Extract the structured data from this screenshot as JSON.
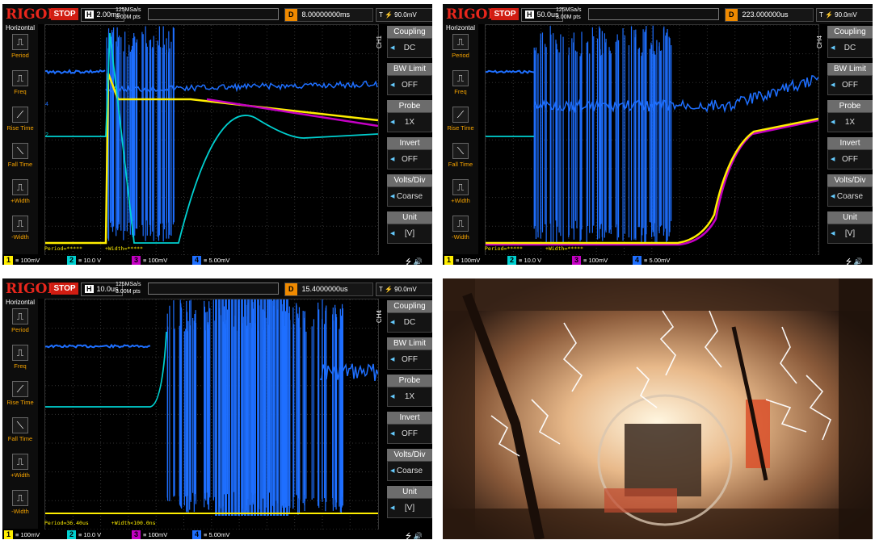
{
  "panels": [
    {
      "brand": "RIGOL",
      "run_state": "STOP",
      "timebase": "2.00ms",
      "sample_rate": "125MSa/s",
      "memory_depth": "3.00M pts",
      "delay": "8.00000000ms",
      "trigger_level": "90.0mV",
      "channel_label": "CH1",
      "measure_period": "Period=*****",
      "measure_width": "+Width=*****",
      "highlight_channel": "1"
    },
    {
      "brand": "RIGOL",
      "run_state": "STOP",
      "timebase": "50.0us",
      "sample_rate": "125MSa/s",
      "memory_depth": "3.00M pts",
      "delay": "223.000000us",
      "trigger_level": "90.0mV",
      "channel_label": "CH4",
      "measure_period": "Period=*****",
      "measure_width": "+Width=*****",
      "highlight_channel": "4"
    },
    {
      "brand": "RIGOL",
      "run_state": "STOP",
      "timebase": "10.0us",
      "sample_rate": "125MSa/s",
      "memory_depth": "3.00M pts",
      "delay": "15.4000000us",
      "trigger_level": "90.0mV",
      "channel_label": "CH4",
      "measure_period": "Period=36.40us",
      "measure_width": "+Width<100.0ns",
      "highlight_channel": "4"
    }
  ],
  "left_menu": {
    "title": "Horizontal",
    "items": [
      "Period",
      "Freq",
      "Rise Time",
      "Fall Time",
      "+Width",
      "-Width"
    ]
  },
  "right_menu": [
    {
      "title": "Coupling",
      "value": "DC"
    },
    {
      "title": "BW Limit",
      "value": "OFF"
    },
    {
      "title": "Probe",
      "value": "1X"
    },
    {
      "title": "Invert",
      "value": "OFF"
    },
    {
      "title": "Volts/Div",
      "value": "Coarse"
    },
    {
      "title": "Unit",
      "value": "[V]"
    }
  ],
  "channels": [
    {
      "num": "1",
      "scale": "100mV",
      "color": "#ffee00"
    },
    {
      "num": "2",
      "scale": "10.0 V",
      "color": "#00d0d0"
    },
    {
      "num": "3",
      "scale": "100mV",
      "color": "#c400c4"
    },
    {
      "num": "4",
      "scale": "5.00mV",
      "color": "#1e6fff"
    }
  ],
  "icons": {
    "usb": "usb-icon",
    "speaker": "speaker-icon"
  }
}
